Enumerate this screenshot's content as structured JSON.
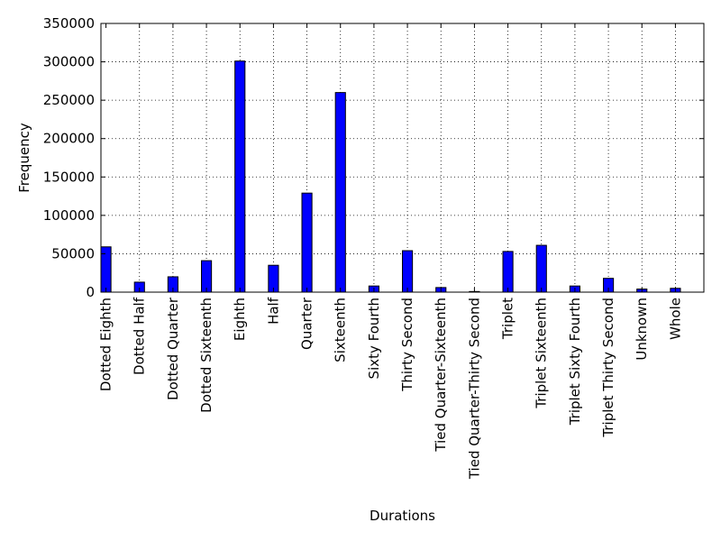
{
  "chart_data": {
    "type": "bar",
    "xlabel": "Durations",
    "ylabel": "Frequency",
    "ylim": [
      0,
      350000
    ],
    "yticks": [
      0,
      50000,
      100000,
      150000,
      200000,
      250000,
      300000,
      350000
    ],
    "grid": true,
    "bar_color": "#0000ff",
    "categories": [
      "Dotted Eighth",
      "Dotted Half",
      "Dotted Quarter",
      "Dotted Sixteenth",
      "Eighth",
      "Half",
      "Quarter",
      "Sixteenth",
      "Sixty Fourth",
      "Thirty Second",
      "Tied Quarter-Sixteenth",
      "Tied Quarter-Thirty Second",
      "Triplet",
      "Triplet Sixteenth",
      "Triplet Sixty Fourth",
      "Triplet Thirty Second",
      "Unknown",
      "Whole"
    ],
    "values": [
      59000,
      13000,
      20000,
      41000,
      301000,
      35000,
      129000,
      260000,
      8000,
      54000,
      6000,
      800,
      53000,
      61000,
      8000,
      18000,
      4000,
      5000
    ]
  }
}
